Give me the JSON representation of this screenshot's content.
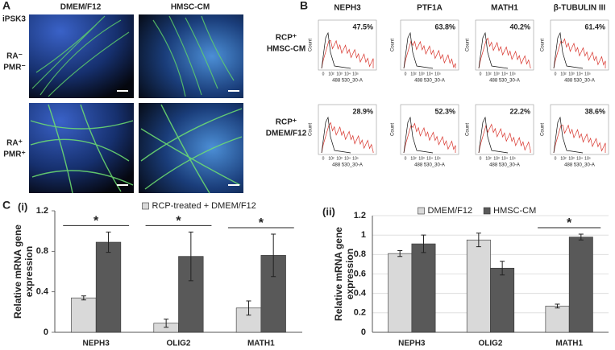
{
  "panel_a": {
    "label": "A",
    "cell_line": "iPSK3",
    "columns": [
      "DMEM/F12",
      "HMSC-CM"
    ],
    "rows": [
      [
        "RA⁻",
        "PMR⁻"
      ],
      [
        "RA⁺",
        "PMR⁺"
      ]
    ]
  },
  "panel_b": {
    "label": "B",
    "markers": [
      "NEPH3",
      "PTF1A",
      "MATH1",
      "β-TUBULIN III"
    ],
    "rows": [
      {
        "label": [
          "RCP⁺",
          "HMSC-CM"
        ],
        "percentages": [
          "47.5%",
          "63.8%",
          "40.2%",
          "61.4%"
        ]
      },
      {
        "label": [
          "RCP⁺",
          "DMEM/F12"
        ],
        "percentages": [
          "28.9%",
          "52.3%",
          "22.2%",
          "38.6%"
        ]
      }
    ],
    "ylabel": "Count",
    "xlabel": "488 530_30-A",
    "xtick_labels": [
      "0",
      "10²",
      "10³",
      "10⁴",
      "10⁵"
    ]
  },
  "panel_c_label": "C",
  "chart_data": [
    {
      "type": "bar",
      "title": "(i)",
      "ylabel": [
        "Relative mRNA gene",
        "expression"
      ],
      "categories": [
        "NEPH3",
        "OLIG2",
        "MATH1"
      ],
      "series": [
        {
          "name": "RCP-treated + DMEM/F12",
          "color": "#d9d9d9",
          "values": [
            0.34,
            0.09,
            0.24
          ],
          "errors": [
            0.02,
            0.04,
            0.07
          ]
        },
        {
          "color": "#595959",
          "values": [
            0.89,
            0.75,
            0.76
          ],
          "errors": [
            0.1,
            0.24,
            0.21
          ]
        }
      ],
      "annotations": [
        "*",
        "*",
        "*"
      ],
      "ylim": [
        0,
        1.2
      ],
      "yticks": [
        0,
        0.4,
        0.8,
        1.2
      ],
      "grid": false,
      "legend": "top"
    },
    {
      "type": "bar",
      "title": "(ii)",
      "ylabel": [
        "Relative mRNA gene",
        "expression"
      ],
      "categories": [
        "NEPH3",
        "OLIG2",
        "MATH1"
      ],
      "series": [
        {
          "name": "DMEM/F12",
          "color": "#d9d9d9",
          "values": [
            0.81,
            0.95,
            0.27
          ],
          "errors": [
            0.03,
            0.07,
            0.02
          ]
        },
        {
          "name": "HMSC-CM",
          "color": "#595959",
          "values": [
            0.91,
            0.66,
            0.98
          ],
          "errors": [
            0.09,
            0.07,
            0.03
          ]
        }
      ],
      "annotations": [
        null,
        null,
        "*"
      ],
      "ylim": [
        0,
        1.2
      ],
      "yticks": [
        0,
        0.2,
        0.4,
        0.6,
        0.8,
        1,
        1.2
      ],
      "grid": true,
      "legend": "top"
    }
  ]
}
